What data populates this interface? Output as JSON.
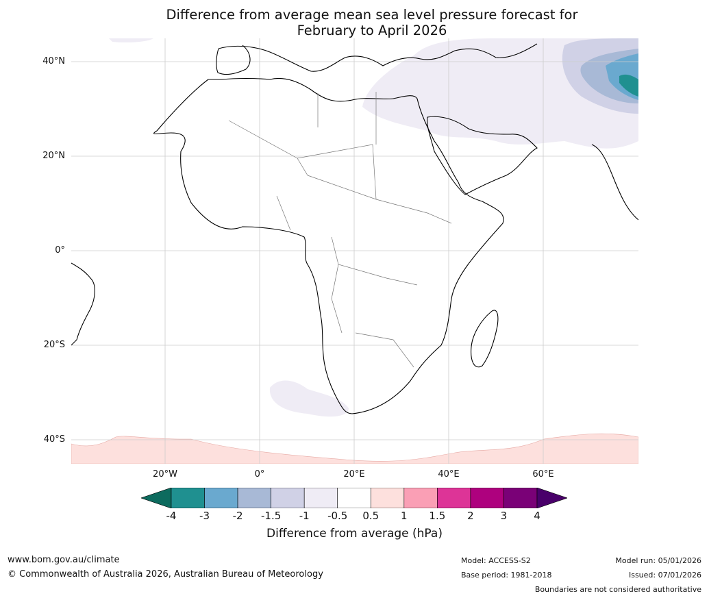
{
  "title_line1": "Difference from average mean sea level pressure forecast for",
  "title_line2": "February to April 2026",
  "map": {
    "region": "Africa",
    "latitude_labels": [
      "40°N",
      "20°N",
      "0°",
      "20°S",
      "40°S"
    ],
    "longitude_labels": [
      "20°W",
      "0°",
      "20°E",
      "40°E",
      "60°E"
    ]
  },
  "colorbar": {
    "ticks": [
      "-4",
      "-3",
      "-2",
      "-1.5",
      "-1",
      "-0.5",
      "0.5",
      "1",
      "1.5",
      "2",
      "3",
      "4"
    ],
    "colors": [
      "#0d6b5e",
      "#1f9090",
      "#6aa9cf",
      "#a8b9d6",
      "#d0d1e6",
      "#efecf5",
      "#ffffff",
      "#fde0dd",
      "#fa9fb5",
      "#dd3497",
      "#ae017e",
      "#7a0177",
      "#49006a"
    ],
    "label": "Difference from average (hPa)"
  },
  "footer": {
    "website": "www.bom.gov.au/climate",
    "copyright": "© Commonwealth of Australia 2026, Australian Bureau of Meteorology",
    "model": "Model: ACCESS-S2",
    "base_period": "Base period: 1981-2018",
    "model_run": "Model run: 05/01/2026",
    "issued": "Issued: 07/01/2026",
    "disclaimer": "Boundaries are not considered authoritative"
  }
}
